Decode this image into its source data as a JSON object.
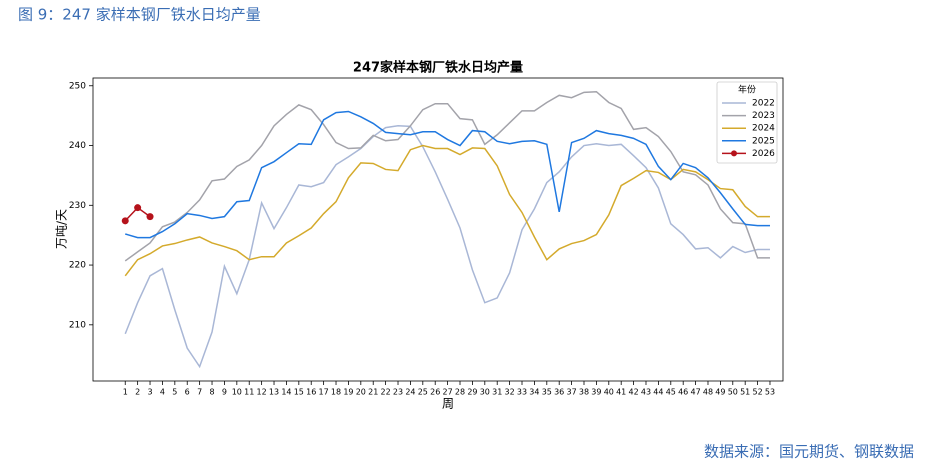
{
  "header": {
    "title": "图 9：247 家样本钢厂铁水日均产量"
  },
  "chart_data": {
    "type": "line",
    "title": "247家样本钢厂铁水日均产量",
    "xlabel": "周",
    "ylabel": "万吨/天",
    "legend_title": "年份",
    "legend": "upper right",
    "x": [
      1,
      2,
      3,
      4,
      5,
      6,
      7,
      8,
      9,
      10,
      11,
      12,
      13,
      14,
      15,
      16,
      17,
      18,
      19,
      20,
      21,
      22,
      23,
      24,
      25,
      26,
      27,
      28,
      29,
      30,
      31,
      32,
      33,
      34,
      35,
      36,
      37,
      38,
      39,
      40,
      41,
      42,
      43,
      44,
      45,
      46,
      47,
      48,
      49,
      50,
      51,
      52,
      53
    ],
    "xticks": [
      1,
      2,
      3,
      4,
      5,
      6,
      7,
      8,
      9,
      10,
      11,
      12,
      13,
      14,
      15,
      16,
      17,
      18,
      19,
      20,
      21,
      22,
      23,
      24,
      25,
      26,
      27,
      28,
      29,
      30,
      31,
      32,
      33,
      34,
      35,
      36,
      37,
      38,
      39,
      40,
      41,
      42,
      43,
      44,
      45,
      46,
      47,
      48,
      49,
      50,
      51,
      52,
      53
    ],
    "xlim": [
      -1.6,
      54.05
    ],
    "ylim": [
      200.6,
      251.3
    ],
    "yticks": [
      210,
      220,
      230,
      240,
      250
    ],
    "series": [
      {
        "name": "2022",
        "color": "#a9b7d6",
        "values": [
          208.5,
          213.7,
          218.2,
          219.4,
          212.5,
          206.1,
          203,
          208.8,
          219.8,
          215.2,
          220.9,
          230.4,
          226.1,
          229.6,
          233.4,
          233.1,
          233.8,
          236.8,
          238.1,
          239.5,
          241.5,
          243,
          243.3,
          243.2,
          239.8,
          235.6,
          231,
          226.2,
          219.2,
          213.7,
          214.5,
          218.7,
          225.9,
          229.4,
          233.8,
          235.6,
          238.1,
          240,
          240.3,
          240,
          240.2,
          238.3,
          236.3,
          232.9,
          226.9,
          225.1,
          222.7,
          222.9,
          221.2,
          223.1,
          222.1,
          222.6,
          222.6
        ]
      },
      {
        "name": "2023",
        "color": "#a3a3aa",
        "values": [
          220.7,
          222.2,
          223.7,
          226.4,
          227.2,
          228.8,
          230.9,
          234.1,
          234.4,
          236.5,
          237.6,
          240,
          243.3,
          245.2,
          246.8,
          246,
          243.5,
          240.5,
          239.5,
          239.6,
          241.7,
          240.8,
          241,
          243.3,
          246,
          247,
          247,
          244.5,
          244.3,
          240.2,
          241.8,
          243.8,
          245.8,
          245.8,
          247.2,
          248.4,
          248,
          248.9,
          249,
          247.2,
          246.2,
          242.7,
          243,
          241.5,
          239,
          235.6,
          235.1,
          233.4,
          229.4,
          227.1,
          226.9,
          221.2,
          221.2
        ]
      },
      {
        "name": "2024",
        "color": "#d4aa2c",
        "values": [
          218.2,
          220.9,
          221.9,
          223.2,
          223.6,
          224.2,
          224.7,
          223.7,
          223.1,
          222.4,
          220.9,
          221.4,
          221.4,
          223.7,
          224.9,
          226.2,
          228.6,
          230.6,
          234.6,
          237.1,
          237,
          236,
          235.8,
          239.3,
          240,
          239.5,
          239.5,
          238.5,
          239.6,
          239.5,
          236.6,
          231.8,
          228.8,
          224.7,
          220.9,
          222.7,
          223.6,
          224.1,
          225.1,
          228.4,
          233.3,
          234.5,
          235.8,
          235.5,
          234.3,
          236,
          235.6,
          234.3,
          232.8,
          232.6,
          229.8,
          228.1,
          228.1
        ]
      },
      {
        "name": "2025",
        "color": "#1f78e0",
        "values": [
          225.2,
          224.6,
          224.6,
          225.6,
          226.9,
          228.6,
          228.3,
          227.8,
          228.1,
          230.6,
          230.8,
          236.3,
          237.3,
          238.8,
          240.3,
          240.2,
          244.3,
          245.5,
          245.7,
          244.8,
          243.7,
          242.2,
          242,
          241.8,
          242.3,
          242.3,
          241,
          240,
          242.5,
          242.3,
          240.7,
          240.3,
          240.7,
          240.8,
          240.2,
          228.9,
          240.5,
          241.2,
          242.5,
          242,
          241.7,
          241.2,
          240.2,
          236.5,
          234.3,
          237,
          236.3,
          234.6,
          232.1,
          229.4,
          226.8,
          226.6,
          226.6
        ]
      },
      {
        "name": "2026",
        "color": "#b5121b",
        "marker": "o",
        "values": [
          227.4,
          229.6,
          228.1,
          null,
          null,
          null,
          null,
          null,
          null,
          null,
          null,
          null,
          null,
          null,
          null,
          null,
          null,
          null,
          null,
          null,
          null,
          null,
          null,
          null,
          null,
          null,
          null,
          null,
          null,
          null,
          null,
          null,
          null,
          null,
          null,
          null,
          null,
          null,
          null,
          null,
          null,
          null,
          null,
          null,
          null,
          null,
          null,
          null,
          null,
          null,
          null,
          null,
          null
        ]
      }
    ]
  },
  "footer": {
    "source": "数据来源：国元期货、钢联数据"
  }
}
